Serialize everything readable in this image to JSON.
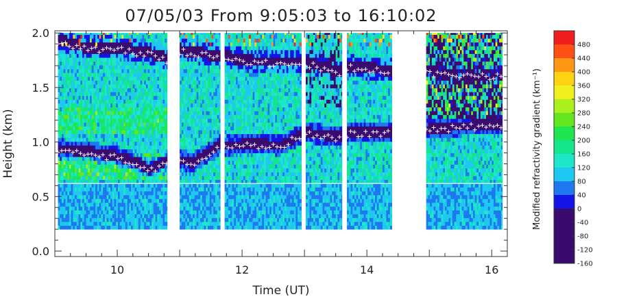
{
  "chart_data": {
    "type": "heatmap",
    "title": "07/05/03 From 9:05:03 to 16:10:02",
    "xlabel": "Time (UT)",
    "ylabel": "Height (km)",
    "xlim": [
      9.0,
      16.25
    ],
    "ylim": [
      -0.05,
      2.02
    ],
    "x_ticks": [
      10,
      12,
      14,
      16
    ],
    "x_tick_labels": [
      "10",
      "12",
      "14",
      "16"
    ],
    "y_ticks": [
      0.0,
      0.5,
      1.0,
      1.5,
      2.0
    ],
    "y_tick_labels": [
      "0.0",
      "0.5",
      "1.0",
      "1.5",
      "2.0"
    ],
    "data_height_range_km": [
      0.2,
      2.0
    ],
    "data_segments_ut": [
      [
        9.05,
        10.8
      ],
      [
        11.0,
        11.65
      ],
      [
        11.72,
        12.95
      ],
      [
        13.02,
        13.6
      ],
      [
        13.68,
        14.4
      ],
      [
        14.95,
        16.17
      ]
    ],
    "colorbar": {
      "label": "Modified refractivity gradient (km⁻¹)",
      "min": -160,
      "max": 480,
      "tick_values": [
        -160,
        -120,
        -80,
        -40,
        0,
        40,
        80,
        120,
        160,
        200,
        240,
        280,
        320,
        360,
        400,
        440,
        480
      ],
      "tick_labels": [
        "-160",
        "-120",
        "-80",
        "-40",
        "0",
        "40",
        "80",
        "120",
        "160",
        "200",
        "240",
        "280",
        "320",
        "360",
        "400",
        "440",
        "480"
      ],
      "bins": [
        {
          "from": -160,
          "to": 0,
          "color": "#3a0a6e"
        },
        {
          "from": 0,
          "to": 40,
          "color": "#1414e6"
        },
        {
          "from": 40,
          "to": 80,
          "color": "#1e78f0"
        },
        {
          "from": 80,
          "to": 120,
          "color": "#1ec8f0"
        },
        {
          "from": 120,
          "to": 160,
          "color": "#1ee6c8"
        },
        {
          "from": 160,
          "to": 200,
          "color": "#14e68c"
        },
        {
          "from": 200,
          "to": 240,
          "color": "#1ee650"
        },
        {
          "from": 240,
          "to": 280,
          "color": "#64e61e"
        },
        {
          "from": 280,
          "to": 320,
          "color": "#aaf01e"
        },
        {
          "from": 320,
          "to": 360,
          "color": "#f0f01e"
        },
        {
          "from": 360,
          "to": 400,
          "color": "#ffd214"
        },
        {
          "from": 400,
          "to": 440,
          "color": "#ff9614"
        },
        {
          "from": 440,
          "to": 480,
          "color": "#ff5014"
        },
        {
          "from": 480,
          "to": 520,
          "color": "#f01e1e"
        }
      ]
    },
    "ducting_layers": [
      {
        "points": [
          [
            9.05,
            1.92
          ],
          [
            9.5,
            1.85
          ],
          [
            10.0,
            1.85
          ],
          [
            10.5,
            1.8
          ],
          [
            10.8,
            1.75
          ],
          [
            11.0,
            1.83
          ],
          [
            11.65,
            1.77
          ],
          [
            11.72,
            1.77
          ],
          [
            12.2,
            1.72
          ],
          [
            12.95,
            1.72
          ],
          [
            13.02,
            1.72
          ],
          [
            13.6,
            1.62
          ],
          [
            13.68,
            1.68
          ],
          [
            14.4,
            1.64
          ],
          [
            14.95,
            1.63
          ],
          [
            15.5,
            1.6
          ],
          [
            16.17,
            1.6
          ]
        ]
      },
      {
        "points": [
          [
            9.05,
            0.92
          ],
          [
            9.5,
            0.9
          ],
          [
            10.0,
            0.85
          ],
          [
            10.3,
            0.8
          ],
          [
            10.5,
            0.73
          ],
          [
            10.8,
            0.82
          ],
          [
            11.0,
            0.82
          ],
          [
            11.2,
            0.8
          ],
          [
            11.4,
            0.87
          ],
          [
            11.65,
            0.97
          ],
          [
            11.72,
            0.95
          ],
          [
            12.2,
            0.97
          ],
          [
            12.6,
            0.95
          ],
          [
            12.95,
            1.06
          ],
          [
            13.02,
            1.07
          ],
          [
            13.6,
            1.03
          ],
          [
            13.68,
            1.07
          ],
          [
            14.4,
            1.08
          ],
          [
            14.95,
            1.1
          ],
          [
            15.5,
            1.13
          ],
          [
            16.17,
            1.15
          ]
        ]
      }
    ]
  }
}
